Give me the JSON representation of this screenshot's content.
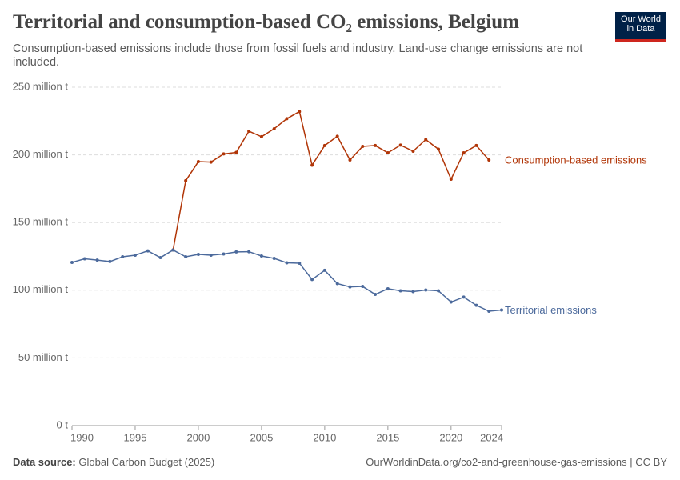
{
  "chart_data": {
    "type": "line",
    "title": "Territorial and consumption-based CO₂ emissions, Belgium",
    "subtitle": "Consumption-based emissions include those from fossil fuels and industry. Land-use change emissions are not included.",
    "logo": [
      "Our World",
      "in Data"
    ],
    "source_label": "Data source:",
    "source": "Global Carbon Budget (2025)",
    "url": "OurWorldinData.org/co2-and-greenhouse-gas-emissions | CC BY",
    "x": [
      1990,
      1991,
      1992,
      1993,
      1994,
      1995,
      1996,
      1997,
      1998,
      1999,
      2000,
      2001,
      2002,
      2003,
      2004,
      2005,
      2006,
      2007,
      2008,
      2009,
      2010,
      2011,
      2012,
      2013,
      2014,
      2015,
      2016,
      2017,
      2018,
      2019,
      2020,
      2021,
      2022,
      2023,
      2024
    ],
    "xlim": [
      1990,
      2024
    ],
    "xticks": [
      1990,
      1995,
      2000,
      2005,
      2010,
      2015,
      2020,
      2024
    ],
    "ylim": [
      0,
      250
    ],
    "yticks": [
      {
        "value": 0,
        "label": "0 t"
      },
      {
        "value": 50,
        "label": "50 million t"
      },
      {
        "value": 100,
        "label": "100 million t"
      },
      {
        "value": 150,
        "label": "150 million t"
      },
      {
        "value": 200,
        "label": "200 million t"
      },
      {
        "value": 250,
        "label": "250 million t"
      }
    ],
    "grid": true,
    "series": [
      {
        "name": "Consumption-based emissions",
        "color": "#b13507",
        "values": [
          null,
          null,
          null,
          null,
          null,
          null,
          null,
          null,
          129.7,
          180.9,
          195.0,
          194.7,
          200.7,
          201.8,
          217.5,
          213.4,
          219.3,
          226.7,
          232.0,
          192.4,
          206.9,
          213.7,
          196.2,
          206.3,
          206.9,
          201.5,
          207.2,
          202.7,
          211.3,
          204.2,
          182.0,
          201.5,
          206.9,
          196.2,
          null
        ]
      },
      {
        "name": "Territorial emissions",
        "color": "#4c6a9c",
        "values": [
          120.6,
          123.2,
          122.3,
          121.2,
          124.7,
          125.9,
          129.1,
          124.1,
          129.7,
          124.7,
          126.5,
          125.9,
          126.8,
          128.3,
          128.5,
          125.3,
          123.5,
          120.3,
          120.0,
          107.9,
          114.7,
          104.9,
          102.5,
          102.8,
          96.9,
          101.1,
          99.6,
          99.0,
          100.2,
          99.6,
          91.3,
          94.9,
          88.9,
          84.5,
          85.4
        ]
      }
    ]
  }
}
